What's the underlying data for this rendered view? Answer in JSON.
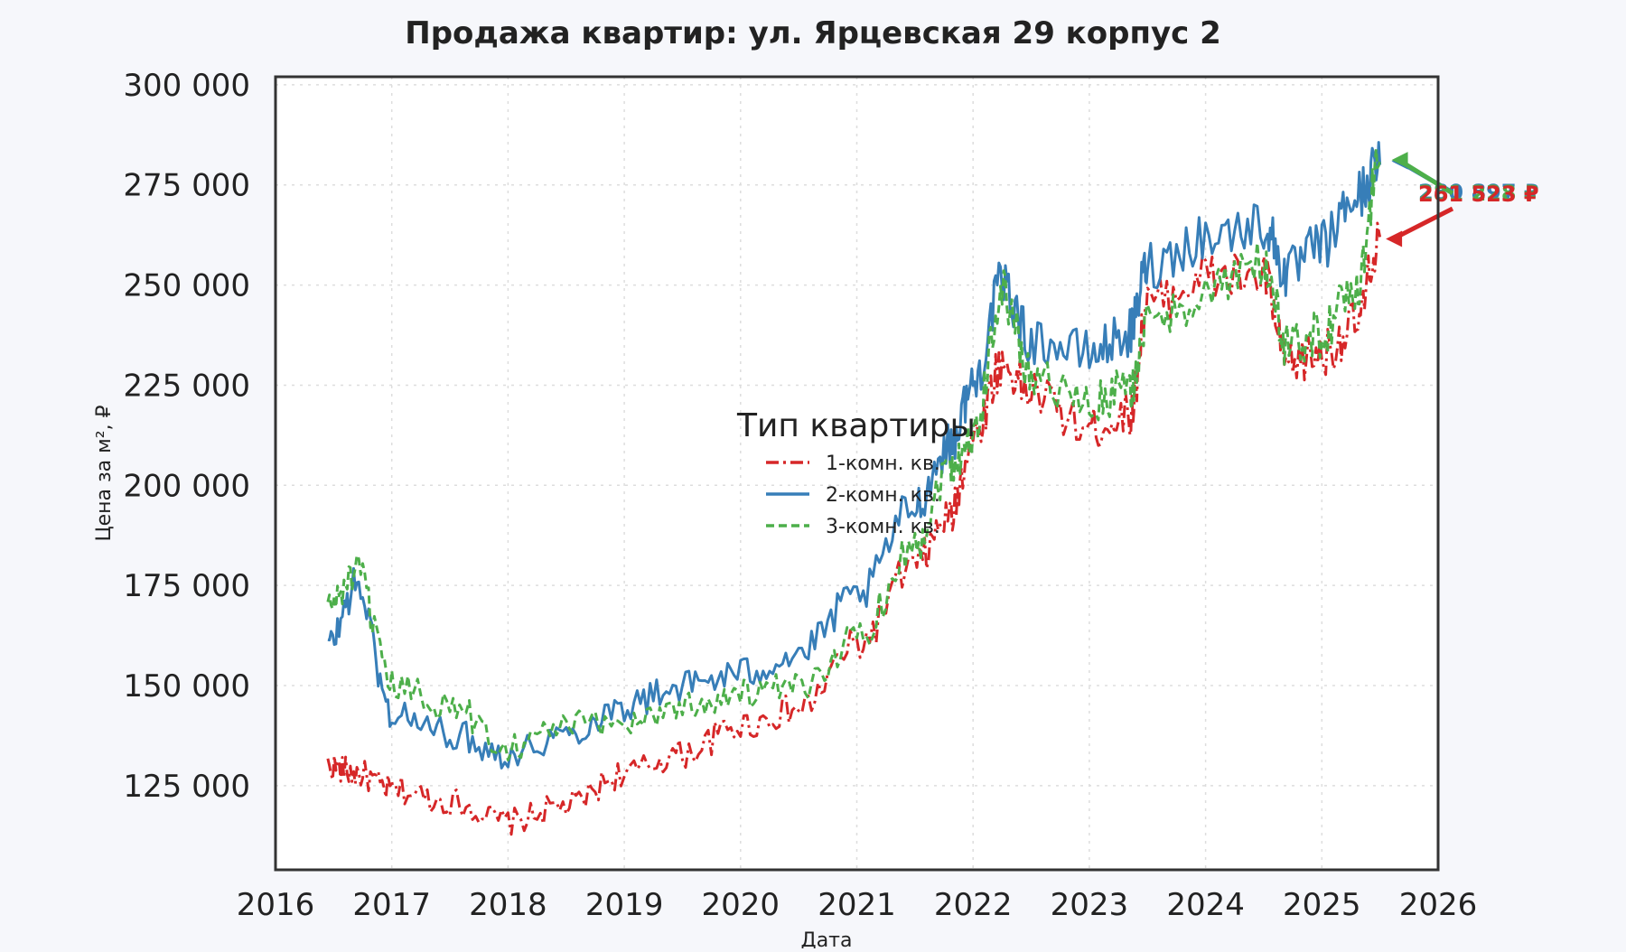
{
  "chart_data": {
    "type": "line",
    "title": "Продажа квартир: ул. Ярцевская 29 корпус 2",
    "xlabel": "Дата",
    "ylabel": "Цена за м², ₽",
    "xlim": [
      2016,
      2026
    ],
    "ylim": [
      104000,
      302000
    ],
    "x_ticks": [
      "2016",
      "2017",
      "2018",
      "2019",
      "2020",
      "2021",
      "2022",
      "2023",
      "2024",
      "2025",
      "2026"
    ],
    "y_ticks": [
      "125 000",
      "150 000",
      "175 000",
      "200 000",
      "225 000",
      "250 000",
      "275 000",
      "300 000"
    ],
    "grid": true,
    "legend": {
      "title": "Тип квартиры",
      "placement": "center"
    },
    "x_anchors": [
      2016.45,
      2016.7,
      2017.0,
      2017.5,
      2018.0,
      2018.5,
      2019.0,
      2019.5,
      2020.0,
      2020.5,
      2021.0,
      2021.5,
      2021.8,
      2022.0,
      2022.25,
      2022.5,
      2023.0,
      2023.35,
      2023.5,
      2024.0,
      2024.5,
      2024.7,
      2025.0,
      2025.3,
      2025.5
    ],
    "series": [
      {
        "name": "1-комн. кв.",
        "color": "#d62728",
        "values": [
          130000,
          128000,
          124000,
          121000,
          116000,
          120000,
          128000,
          133000,
          140000,
          144000,
          160000,
          180000,
          192000,
          212000,
          230000,
          223000,
          214000,
          218000,
          245000,
          252000,
          252000,
          230000,
          233000,
          240000,
          262000
        ]
      },
      {
        "name": "2-комн. кв.",
        "color": "#377eb8",
        "values": [
          160000,
          175000,
          143000,
          138000,
          133000,
          138000,
          145000,
          150000,
          153000,
          158000,
          172000,
          195000,
          210000,
          225000,
          250000,
          236000,
          233000,
          238000,
          255000,
          262000,
          265000,
          253000,
          260000,
          272000,
          280000
        ]
      },
      {
        "name": "3-комн. кв.",
        "color": "#4daf4a",
        "values": [
          170000,
          178000,
          150000,
          145000,
          135000,
          140000,
          141000,
          145000,
          148000,
          149000,
          162000,
          185000,
          205000,
          212000,
          248000,
          228000,
          220000,
          224000,
          240000,
          248000,
          255000,
          235000,
          238000,
          250000,
          281000
        ]
      }
    ],
    "annotations": [
      {
        "text": "280 897 ₽",
        "x": 2025.6,
        "y": 280897,
        "color": "#377eb8"
      },
      {
        "text": "281 228 ₽",
        "x": 2025.6,
        "y": 281228,
        "color": "#4daf4a"
      },
      {
        "text": "261 523 ₽",
        "x": 2025.55,
        "y": 261523,
        "color": "#d62728"
      }
    ]
  }
}
